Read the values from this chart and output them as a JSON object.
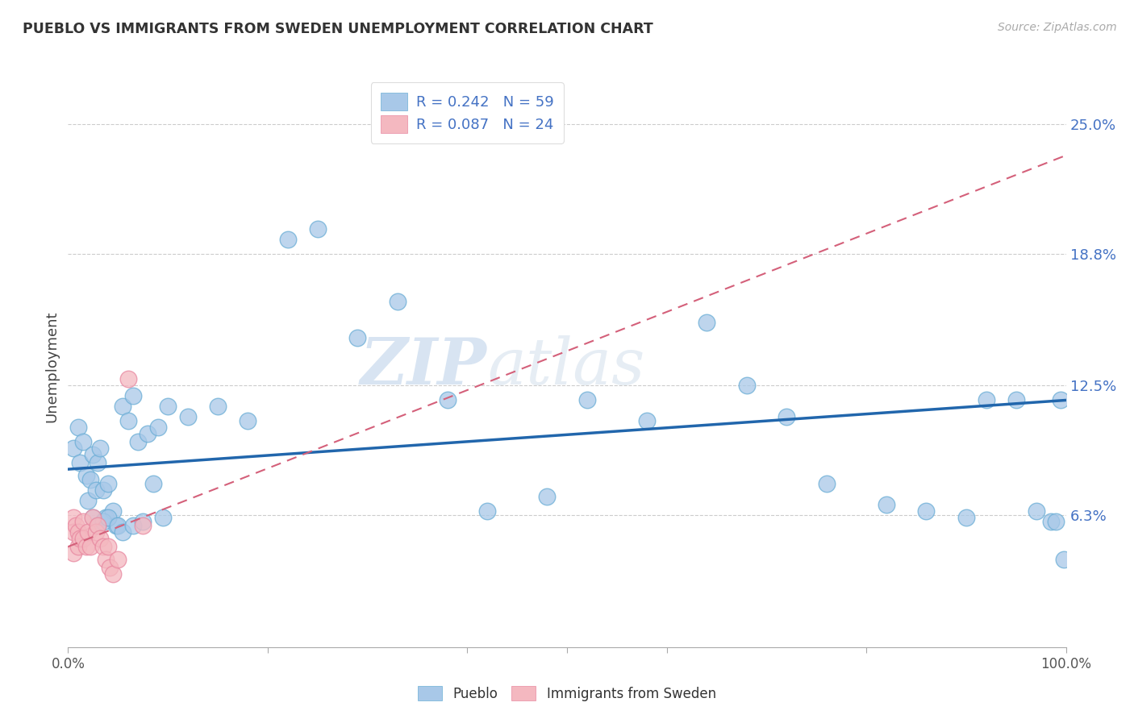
{
  "title": "PUEBLO VS IMMIGRANTS FROM SWEDEN UNEMPLOYMENT CORRELATION CHART",
  "source": "Source: ZipAtlas.com",
  "ylabel": "Unemployment",
  "yticks": [
    0.0,
    0.063,
    0.125,
    0.188,
    0.25
  ],
  "ytick_labels": [
    "",
    "6.3%",
    "12.5%",
    "18.8%",
    "25.0%"
  ],
  "xlim": [
    0.0,
    1.0
  ],
  "ylim": [
    0.0,
    0.268
  ],
  "legend_r1": "R = 0.242",
  "legend_n1": "N = 59",
  "legend_r2": "R = 0.087",
  "legend_n2": "N = 24",
  "pueblo_color": "#a8c8e8",
  "pueblo_edge_color": "#6baed6",
  "sweden_color": "#f4b8c0",
  "sweden_edge_color": "#e888a0",
  "pueblo_line_color": "#2166ac",
  "sweden_line_color": "#d4607a",
  "watermark_zip": "ZIP",
  "watermark_atlas": "atlas",
  "pueblo_scatter_x": [
    0.005,
    0.01,
    0.012,
    0.015,
    0.018,
    0.02,
    0.022,
    0.025,
    0.028,
    0.03,
    0.032,
    0.035,
    0.038,
    0.04,
    0.045,
    0.048,
    0.055,
    0.06,
    0.065,
    0.07,
    0.08,
    0.09,
    0.1,
    0.12,
    0.15,
    0.18,
    0.22,
    0.25,
    0.29,
    0.33,
    0.38,
    0.42,
    0.48,
    0.52,
    0.58,
    0.64,
    0.68,
    0.72,
    0.76,
    0.82,
    0.86,
    0.9,
    0.92,
    0.95,
    0.97,
    0.985,
    0.99,
    0.995,
    0.998,
    0.025,
    0.03,
    0.035,
    0.04,
    0.05,
    0.055,
    0.065,
    0.075,
    0.085,
    0.095
  ],
  "pueblo_scatter_y": [
    0.095,
    0.105,
    0.088,
    0.098,
    0.082,
    0.07,
    0.08,
    0.092,
    0.075,
    0.088,
    0.095,
    0.075,
    0.062,
    0.078,
    0.065,
    0.058,
    0.115,
    0.108,
    0.12,
    0.098,
    0.102,
    0.105,
    0.115,
    0.11,
    0.115,
    0.108,
    0.195,
    0.2,
    0.148,
    0.165,
    0.118,
    0.065,
    0.072,
    0.118,
    0.108,
    0.155,
    0.125,
    0.11,
    0.078,
    0.068,
    0.065,
    0.062,
    0.118,
    0.118,
    0.065,
    0.06,
    0.06,
    0.118,
    0.042,
    0.062,
    0.058,
    0.06,
    0.062,
    0.058,
    0.055,
    0.058,
    0.06,
    0.078,
    0.062
  ],
  "sweden_scatter_x": [
    0.005,
    0.005,
    0.005,
    0.008,
    0.01,
    0.01,
    0.012,
    0.015,
    0.015,
    0.018,
    0.02,
    0.022,
    0.025,
    0.028,
    0.03,
    0.032,
    0.035,
    0.038,
    0.04,
    0.042,
    0.045,
    0.05,
    0.06,
    0.075
  ],
  "sweden_scatter_y": [
    0.062,
    0.055,
    0.045,
    0.058,
    0.055,
    0.048,
    0.052,
    0.06,
    0.052,
    0.048,
    0.055,
    0.048,
    0.062,
    0.055,
    0.058,
    0.052,
    0.048,
    0.042,
    0.048,
    0.038,
    0.035,
    0.042,
    0.128,
    0.058
  ],
  "pueblo_line_x0": 0.0,
  "pueblo_line_x1": 1.0,
  "pueblo_line_y0": 0.085,
  "pueblo_line_y1": 0.118,
  "sweden_line_x0": 0.0,
  "sweden_line_x1": 1.0,
  "sweden_line_y0": 0.048,
  "sweden_line_y1": 0.235
}
